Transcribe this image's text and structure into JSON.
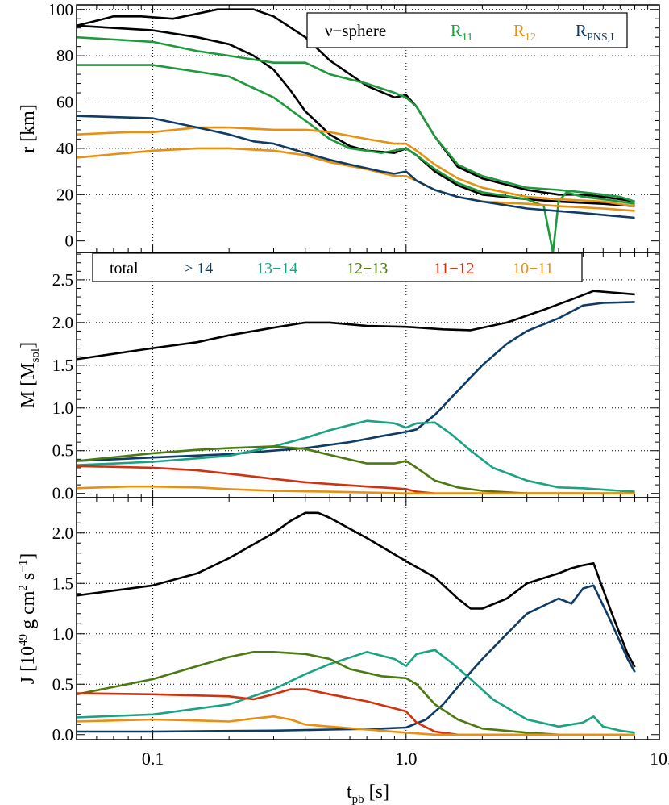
{
  "colors": {
    "black": "#000000",
    "green": "#1e9a3c",
    "orange": "#e8900f",
    "navy": "#0f3c66",
    "teal": "#1aa382",
    "olive": "#4a7a10",
    "red": "#d0320e"
  },
  "chart_data": [
    {
      "type": "line",
      "panel": "radii",
      "ylabel": "r [km]",
      "xscale": "log",
      "xlim": [
        0.05,
        10.0
      ],
      "ylim": [
        -5,
        102
      ],
      "yticks": [
        "0",
        "20",
        "40",
        "60",
        "80",
        "100"
      ],
      "ytick_values": [
        0,
        20,
        40,
        60,
        80,
        100
      ],
      "grid": true,
      "legend": {
        "placement": "top-right",
        "entries": [
          {
            "label": "ν−sphere",
            "color": "#000000"
          },
          {
            "label": "R",
            "sub": "11",
            "color": "#1e9a3c"
          },
          {
            "label": "R",
            "sub": "12",
            "color": "#e8900f"
          },
          {
            "label": "R",
            "sub": "PNS,I",
            "color": "#0f3c66"
          }
        ]
      },
      "series": [
        {
          "name": "ν−sphere outer",
          "color": "#000000",
          "x": [
            0.05,
            0.07,
            0.09,
            0.12,
            0.18,
            0.25,
            0.3,
            0.4,
            0.5,
            0.7,
            0.9,
            1.0,
            1.1,
            1.3,
            1.6,
            2.0,
            3.0,
            4.0,
            5.0,
            6.0,
            7.0,
            8.0
          ],
          "y": [
            93,
            97,
            97,
            96,
            100,
            100,
            97,
            88,
            78,
            67,
            62,
            63,
            58,
            45,
            32,
            27,
            22,
            20,
            20,
            19,
            18,
            17
          ]
        },
        {
          "name": "ν−sphere inner",
          "color": "#000000",
          "x": [
            0.05,
            0.1,
            0.15,
            0.2,
            0.25,
            0.3,
            0.35,
            0.4,
            0.5,
            0.6,
            0.7,
            0.9,
            1.0,
            1.1,
            1.3,
            1.6,
            2.0,
            3.0,
            4.0,
            6.0,
            8.0
          ],
          "y": [
            93,
            91,
            88,
            85,
            80,
            74,
            65,
            56,
            46,
            41,
            39,
            38,
            40,
            37,
            30,
            24,
            20,
            18,
            17,
            16,
            15
          ]
        },
        {
          "name": "R11 upper",
          "color": "#1e9a3c",
          "x": [
            0.05,
            0.1,
            0.15,
            0.2,
            0.3,
            0.4,
            0.5,
            0.7,
            0.9,
            1.0,
            1.1,
            1.3,
            1.6,
            2.0,
            3.0,
            4.0,
            5.0,
            6.0,
            7.0,
            8.0
          ],
          "y": [
            88,
            86,
            82,
            80,
            77,
            77,
            72,
            68,
            64,
            62,
            58,
            45,
            33,
            28,
            23,
            22,
            21,
            20,
            19,
            17
          ]
        },
        {
          "name": "R11 lower",
          "color": "#1e9a3c",
          "x": [
            0.05,
            0.1,
            0.2,
            0.3,
            0.4,
            0.5,
            0.6,
            0.8,
            1.0,
            1.1,
            1.3,
            1.6,
            2.0,
            3.0,
            3.5,
            3.8,
            4.0,
            4.3,
            5.0,
            6.0,
            7.0,
            8.0
          ],
          "y": [
            76,
            76,
            71,
            62,
            52,
            44,
            40,
            38,
            40,
            37,
            31,
            25,
            21,
            18,
            15,
            -5,
            17,
            21,
            19,
            18,
            17,
            16
          ]
        },
        {
          "name": "R12 upper",
          "color": "#e8900f",
          "x": [
            0.05,
            0.08,
            0.1,
            0.15,
            0.2,
            0.3,
            0.4,
            0.5,
            0.7,
            0.9,
            1.0,
            1.1,
            1.3,
            1.6,
            2.0,
            3.0,
            4.0,
            6.0,
            8.0
          ],
          "y": [
            46,
            47,
            47,
            49,
            49,
            48,
            48,
            47,
            44,
            42,
            42,
            39,
            33,
            27,
            23,
            19,
            18,
            17,
            15
          ]
        },
        {
          "name": "R12 lower",
          "color": "#e8900f",
          "x": [
            0.05,
            0.08,
            0.1,
            0.15,
            0.2,
            0.3,
            0.4,
            0.5,
            0.7,
            0.9,
            1.0,
            1.1,
            1.3,
            1.6,
            2.0,
            3.0,
            4.0,
            6.0,
            8.0
          ],
          "y": [
            36,
            38,
            39,
            40,
            40,
            39,
            37,
            34,
            31,
            28,
            28,
            26,
            22,
            19,
            17,
            16,
            15,
            14,
            13
          ]
        },
        {
          "name": "R_PNS,I",
          "color": "#0f3c66",
          "x": [
            0.05,
            0.1,
            0.15,
            0.2,
            0.25,
            0.3,
            0.4,
            0.5,
            0.6,
            0.8,
            0.9,
            1.0,
            1.1,
            1.3,
            1.6,
            2.0,
            3.0,
            5.0,
            8.0
          ],
          "y": [
            54,
            53,
            49,
            46,
            43,
            42,
            38,
            35,
            33,
            30,
            29,
            30,
            26,
            22,
            19,
            17,
            14,
            12,
            10
          ]
        }
      ]
    },
    {
      "type": "line",
      "panel": "mass",
      "ylabel": "M [M",
      "ylabel_sub": "sol",
      "ylabel_end": "]",
      "xscale": "log",
      "xlim": [
        0.05,
        10.0
      ],
      "ylim": [
        -0.05,
        2.82
      ],
      "yticks": [
        "0.0",
        "0.5",
        "1.0",
        "1.5",
        "2.0",
        "2.5"
      ],
      "ytick_values": [
        0.0,
        0.5,
        1.0,
        1.5,
        2.0,
        2.5
      ],
      "grid": true,
      "legend": {
        "placement": "top",
        "entries": [
          {
            "label": "total",
            "color": "#000000"
          },
          {
            "label": "> 14",
            "color": "#0f3c66"
          },
          {
            "label": "13−14",
            "color": "#1aa382"
          },
          {
            "label": "12−13",
            "color": "#4a7a10"
          },
          {
            "label": "11−12",
            "color": "#d0320e"
          },
          {
            "label": "10−11",
            "color": "#e8900f"
          }
        ]
      },
      "series": [
        {
          "name": "total",
          "color": "#000000",
          "x": [
            0.05,
            0.1,
            0.15,
            0.2,
            0.3,
            0.4,
            0.5,
            0.7,
            1.0,
            1.4,
            1.8,
            2.5,
            3.5,
            4.5,
            5.5,
            8.0
          ],
          "y": [
            1.57,
            1.7,
            1.77,
            1.85,
            1.94,
            2.0,
            2.0,
            1.96,
            1.95,
            1.92,
            1.91,
            2.0,
            2.15,
            2.27,
            2.37,
            2.33
          ]
        },
        {
          "name": "> 14",
          "color": "#0f3c66",
          "x": [
            0.05,
            0.1,
            0.2,
            0.4,
            0.6,
            0.8,
            1.0,
            1.1,
            1.3,
            1.6,
            2.0,
            2.5,
            3.0,
            4.0,
            5.0,
            6.0,
            8.0
          ],
          "y": [
            0.38,
            0.42,
            0.46,
            0.53,
            0.6,
            0.67,
            0.72,
            0.75,
            0.92,
            1.2,
            1.5,
            1.75,
            1.9,
            2.05,
            2.2,
            2.23,
            2.24
          ]
        },
        {
          "name": "13−14",
          "color": "#1aa382",
          "x": [
            0.05,
            0.1,
            0.2,
            0.3,
            0.4,
            0.5,
            0.7,
            0.9,
            1.0,
            1.1,
            1.3,
            1.5,
            1.8,
            2.2,
            3.0,
            4.0,
            5.0,
            7.0,
            8.0
          ],
          "y": [
            0.33,
            0.37,
            0.44,
            0.55,
            0.65,
            0.74,
            0.85,
            0.82,
            0.77,
            0.82,
            0.83,
            0.7,
            0.5,
            0.3,
            0.15,
            0.07,
            0.06,
            0.03,
            0.02
          ]
        },
        {
          "name": "12−13",
          "color": "#4a7a10",
          "x": [
            0.05,
            0.1,
            0.15,
            0.2,
            0.3,
            0.4,
            0.5,
            0.7,
            0.9,
            1.0,
            1.1,
            1.3,
            1.6,
            2.0,
            3.0,
            4.0,
            8.0
          ],
          "y": [
            0.38,
            0.47,
            0.51,
            0.53,
            0.55,
            0.52,
            0.45,
            0.35,
            0.35,
            0.38,
            0.3,
            0.15,
            0.07,
            0.03,
            0.0,
            0.0,
            0.0
          ]
        },
        {
          "name": "11−12",
          "color": "#d0320e",
          "x": [
            0.05,
            0.1,
            0.15,
            0.2,
            0.3,
            0.4,
            0.5,
            0.7,
            0.9,
            1.0,
            1.1,
            1.3,
            2.0,
            8.0
          ],
          "y": [
            0.32,
            0.3,
            0.27,
            0.23,
            0.17,
            0.13,
            0.11,
            0.08,
            0.06,
            0.05,
            0.02,
            0.0,
            0.0,
            0.0
          ]
        },
        {
          "name": "10−11",
          "color": "#e8900f",
          "x": [
            0.05,
            0.08,
            0.1,
            0.15,
            0.2,
            0.3,
            0.5,
            0.7,
            1.0,
            1.3,
            2.0,
            8.0
          ],
          "y": [
            0.06,
            0.08,
            0.08,
            0.07,
            0.05,
            0.03,
            0.02,
            0.01,
            0.0,
            0.0,
            0.0,
            0.0
          ]
        }
      ]
    },
    {
      "type": "line",
      "panel": "angular_momentum",
      "ylabel": "J [10",
      "ylabel_sup": "49",
      "ylabel_mid": " g cm",
      "ylabel_sup2": "2",
      "ylabel_mid2": " s",
      "ylabel_sup3": "−1",
      "ylabel_end": "]",
      "xlabel": "t",
      "xlabel_sub": "pb",
      "xlabel_end": " [s]",
      "xscale": "log",
      "xlim": [
        0.05,
        10.0
      ],
      "xticks": [
        "0.1",
        "1.0",
        "10.0"
      ],
      "xtick_values": [
        0.1,
        1.0,
        10.0
      ],
      "ylim": [
        -0.05,
        2.35
      ],
      "yticks": [
        "0.0",
        "0.5",
        "1.0",
        "1.5",
        "2.0"
      ],
      "ytick_values": [
        0.0,
        0.5,
        1.0,
        1.5,
        2.0
      ],
      "grid": true,
      "series": [
        {
          "name": "total",
          "color": "#000000",
          "x": [
            0.05,
            0.1,
            0.15,
            0.2,
            0.3,
            0.35,
            0.4,
            0.45,
            0.5,
            0.7,
            1.0,
            1.3,
            1.6,
            1.8,
            2.0,
            2.5,
            3.0,
            4.0,
            4.5,
            5.0,
            5.5,
            6.5,
            7.5,
            8.0
          ],
          "y": [
            1.38,
            1.48,
            1.6,
            1.75,
            2.0,
            2.12,
            2.2,
            2.2,
            2.15,
            1.95,
            1.72,
            1.56,
            1.35,
            1.25,
            1.25,
            1.35,
            1.5,
            1.6,
            1.65,
            1.68,
            1.7,
            1.2,
            0.8,
            0.67
          ]
        },
        {
          "name": "> 14",
          "color": "#0f3c66",
          "x": [
            0.05,
            0.1,
            0.3,
            0.5,
            0.8,
            1.0,
            1.2,
            1.4,
            1.7,
            2.0,
            2.5,
            3.0,
            4.0,
            4.5,
            5.0,
            5.5,
            6.5,
            7.5,
            8.0
          ],
          "y": [
            0.03,
            0.03,
            0.04,
            0.05,
            0.06,
            0.07,
            0.15,
            0.3,
            0.55,
            0.75,
            1.0,
            1.2,
            1.35,
            1.3,
            1.45,
            1.48,
            1.1,
            0.75,
            0.62
          ]
        },
        {
          "name": "13−14",
          "color": "#1aa382",
          "x": [
            0.05,
            0.1,
            0.2,
            0.3,
            0.4,
            0.5,
            0.7,
            0.9,
            1.0,
            1.1,
            1.3,
            1.5,
            1.8,
            2.2,
            3.0,
            4.0,
            5.0,
            5.5,
            6.0,
            7.0,
            8.0
          ],
          "y": [
            0.17,
            0.2,
            0.3,
            0.45,
            0.6,
            0.7,
            0.82,
            0.75,
            0.68,
            0.8,
            0.84,
            0.72,
            0.55,
            0.35,
            0.15,
            0.08,
            0.12,
            0.18,
            0.08,
            0.04,
            0.02
          ]
        },
        {
          "name": "12−13",
          "color": "#4a7a10",
          "x": [
            0.05,
            0.1,
            0.15,
            0.2,
            0.25,
            0.3,
            0.4,
            0.5,
            0.6,
            0.8,
            1.0,
            1.1,
            1.3,
            1.6,
            2.0,
            3.0,
            4.0,
            8.0
          ],
          "y": [
            0.4,
            0.55,
            0.68,
            0.77,
            0.82,
            0.82,
            0.8,
            0.75,
            0.65,
            0.58,
            0.56,
            0.5,
            0.3,
            0.15,
            0.06,
            0.02,
            0.0,
            0.0
          ]
        },
        {
          "name": "11−12",
          "color": "#d0320e",
          "x": [
            0.05,
            0.1,
            0.2,
            0.25,
            0.3,
            0.35,
            0.4,
            0.5,
            0.7,
            0.9,
            1.0,
            1.1,
            1.3,
            1.6,
            2.0,
            8.0
          ],
          "y": [
            0.41,
            0.4,
            0.38,
            0.35,
            0.4,
            0.45,
            0.45,
            0.4,
            0.33,
            0.26,
            0.23,
            0.12,
            0.03,
            0.0,
            0.0,
            0.0
          ]
        },
        {
          "name": "10−11",
          "color": "#e8900f",
          "x": [
            0.05,
            0.1,
            0.15,
            0.2,
            0.25,
            0.3,
            0.35,
            0.4,
            0.5,
            0.7,
            1.0,
            1.3,
            2.0,
            8.0
          ],
          "y": [
            0.13,
            0.15,
            0.14,
            0.13,
            0.16,
            0.18,
            0.15,
            0.1,
            0.08,
            0.05,
            0.02,
            0.0,
            0.0,
            0.0
          ]
        }
      ]
    }
  ]
}
